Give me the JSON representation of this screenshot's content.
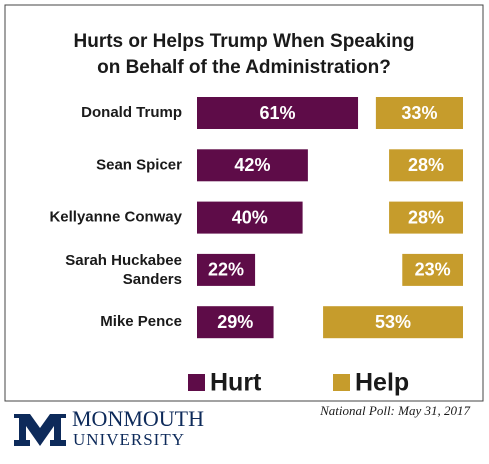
{
  "chart_data": {
    "type": "bar",
    "title": [
      "Hurts or Helps Trump When Speaking",
      "on Behalf of the Administration?"
    ],
    "categories": [
      "Donald Trump",
      "Sean Spicer",
      "Kellyanne Conway",
      "Sarah Huckabee Sanders",
      "Mike Pence"
    ],
    "series": [
      {
        "name": "Hurt",
        "color": "#5e0c48",
        "values": [
          61,
          42,
          40,
          22,
          29
        ],
        "value_labels": [
          "61%",
          "42%",
          "40%",
          "22%",
          "29%"
        ]
      },
      {
        "name": "Help",
        "color": "#c69c2c",
        "values": [
          33,
          28,
          28,
          23,
          53
        ],
        "value_labels": [
          "33%",
          "28%",
          "28%",
          "23%",
          "53%"
        ]
      }
    ]
  },
  "footer": {
    "logo": [
      "MONMOUTH",
      "UNIVERSITY"
    ],
    "note": "National Poll: May 31, 2017"
  }
}
